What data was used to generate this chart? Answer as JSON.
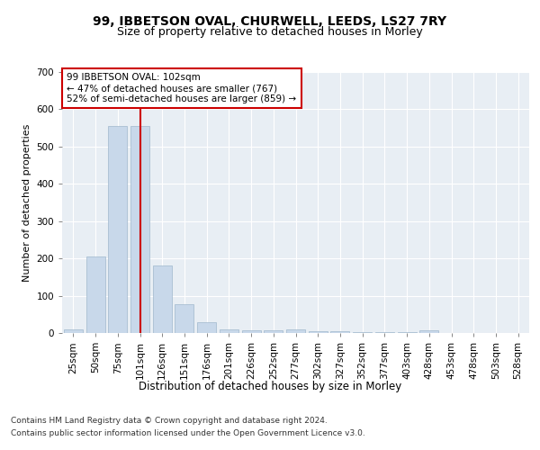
{
  "title1": "99, IBBETSON OVAL, CHURWELL, LEEDS, LS27 7RY",
  "title2": "Size of property relative to detached houses in Morley",
  "xlabel": "Distribution of detached houses by size in Morley",
  "ylabel": "Number of detached properties",
  "categories": [
    "25sqm",
    "50sqm",
    "75sqm",
    "101sqm",
    "126sqm",
    "151sqm",
    "176sqm",
    "201sqm",
    "226sqm",
    "252sqm",
    "277sqm",
    "302sqm",
    "327sqm",
    "352sqm",
    "377sqm",
    "403sqm",
    "428sqm",
    "453sqm",
    "478sqm",
    "503sqm",
    "528sqm"
  ],
  "values": [
    10,
    205,
    555,
    555,
    180,
    78,
    28,
    10,
    8,
    8,
    10,
    5,
    5,
    3,
    2,
    2,
    8,
    1,
    1,
    1,
    0
  ],
  "bar_color": "#c8d8ea",
  "bar_edge_color": "#a0b8cc",
  "vline_x": 3,
  "vline_color": "#cc0000",
  "ylim": [
    0,
    700
  ],
  "yticks": [
    0,
    100,
    200,
    300,
    400,
    500,
    600,
    700
  ],
  "annotation_text": "99 IBBETSON OVAL: 102sqm\n← 47% of detached houses are smaller (767)\n52% of semi-detached houses are larger (859) →",
  "annotation_box_color": "#ffffff",
  "annotation_box_edge": "#cc0000",
  "footer1": "Contains HM Land Registry data © Crown copyright and database right 2024.",
  "footer2": "Contains public sector information licensed under the Open Government Licence v3.0.",
  "background_color": "#e8eef4",
  "grid_color": "#ffffff",
  "title1_fontsize": 10,
  "title2_fontsize": 9,
  "xlabel_fontsize": 8.5,
  "ylabel_fontsize": 8,
  "tick_fontsize": 7.5,
  "annot_fontsize": 7.5,
  "footer_fontsize": 6.5
}
